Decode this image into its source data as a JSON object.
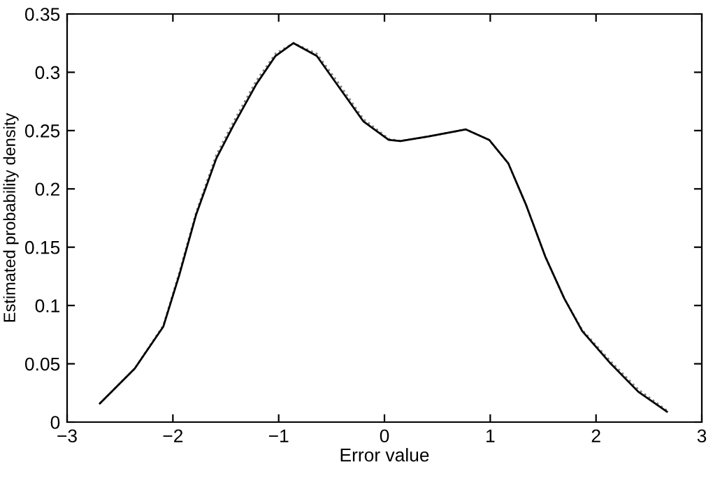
{
  "chart_data": {
    "type": "line",
    "xlabel": "Error value",
    "ylabel": "Estimated probability density",
    "xlim": [
      -3,
      3
    ],
    "ylim": [
      0,
      0.35
    ],
    "xticks": [
      {
        "value": -3,
        "label": "−3"
      },
      {
        "value": -2,
        "label": "−2"
      },
      {
        "value": -1,
        "label": "−1"
      },
      0,
      1,
      2,
      3
    ],
    "yticks": [
      0,
      0.05,
      0.1,
      0.15,
      0.2,
      0.25,
      0.3,
      0.35
    ],
    "grid": false,
    "legend": false,
    "series": [
      {
        "color": "#000000",
        "line_style": "solid",
        "x": [
          -2.69,
          -2.36,
          -2.09,
          -1.94,
          -1.78,
          -1.59,
          -1.43,
          -1.21,
          -1.03,
          -0.86,
          -0.64,
          -0.42,
          -0.2,
          0.04,
          0.15,
          0.42,
          0.77,
          0.99,
          1.17,
          1.34,
          1.52,
          1.7,
          1.87,
          2.14,
          2.4,
          2.67
        ],
        "values": [
          0.016,
          0.046,
          0.082,
          0.126,
          0.178,
          0.226,
          0.254,
          0.29,
          0.314,
          0.325,
          0.314,
          0.286,
          0.258,
          0.242,
          0.241,
          0.245,
          0.251,
          0.242,
          0.222,
          0.186,
          0.142,
          0.106,
          0.078,
          0.05,
          0.026,
          0.009
        ]
      },
      {
        "color": "#808080",
        "line_style": "dotted",
        "x": [
          -2.69,
          -2.36,
          -2.09,
          -1.94,
          -1.78,
          -1.59,
          -1.43,
          -1.21,
          -1.03,
          -0.86,
          -0.64,
          -0.42,
          -0.2,
          0.04,
          0.15,
          0.42,
          0.77,
          0.99,
          1.17,
          1.34,
          1.52,
          1.7,
          1.87,
          2.14,
          2.4,
          2.67
        ],
        "values": [
          0.016,
          0.046,
          0.083,
          0.128,
          0.18,
          0.229,
          0.257,
          0.293,
          0.316,
          0.325,
          0.316,
          0.289,
          0.26,
          0.243,
          0.241,
          0.245,
          0.251,
          0.242,
          0.222,
          0.186,
          0.142,
          0.106,
          0.079,
          0.052,
          0.028,
          0.01
        ]
      }
    ]
  }
}
